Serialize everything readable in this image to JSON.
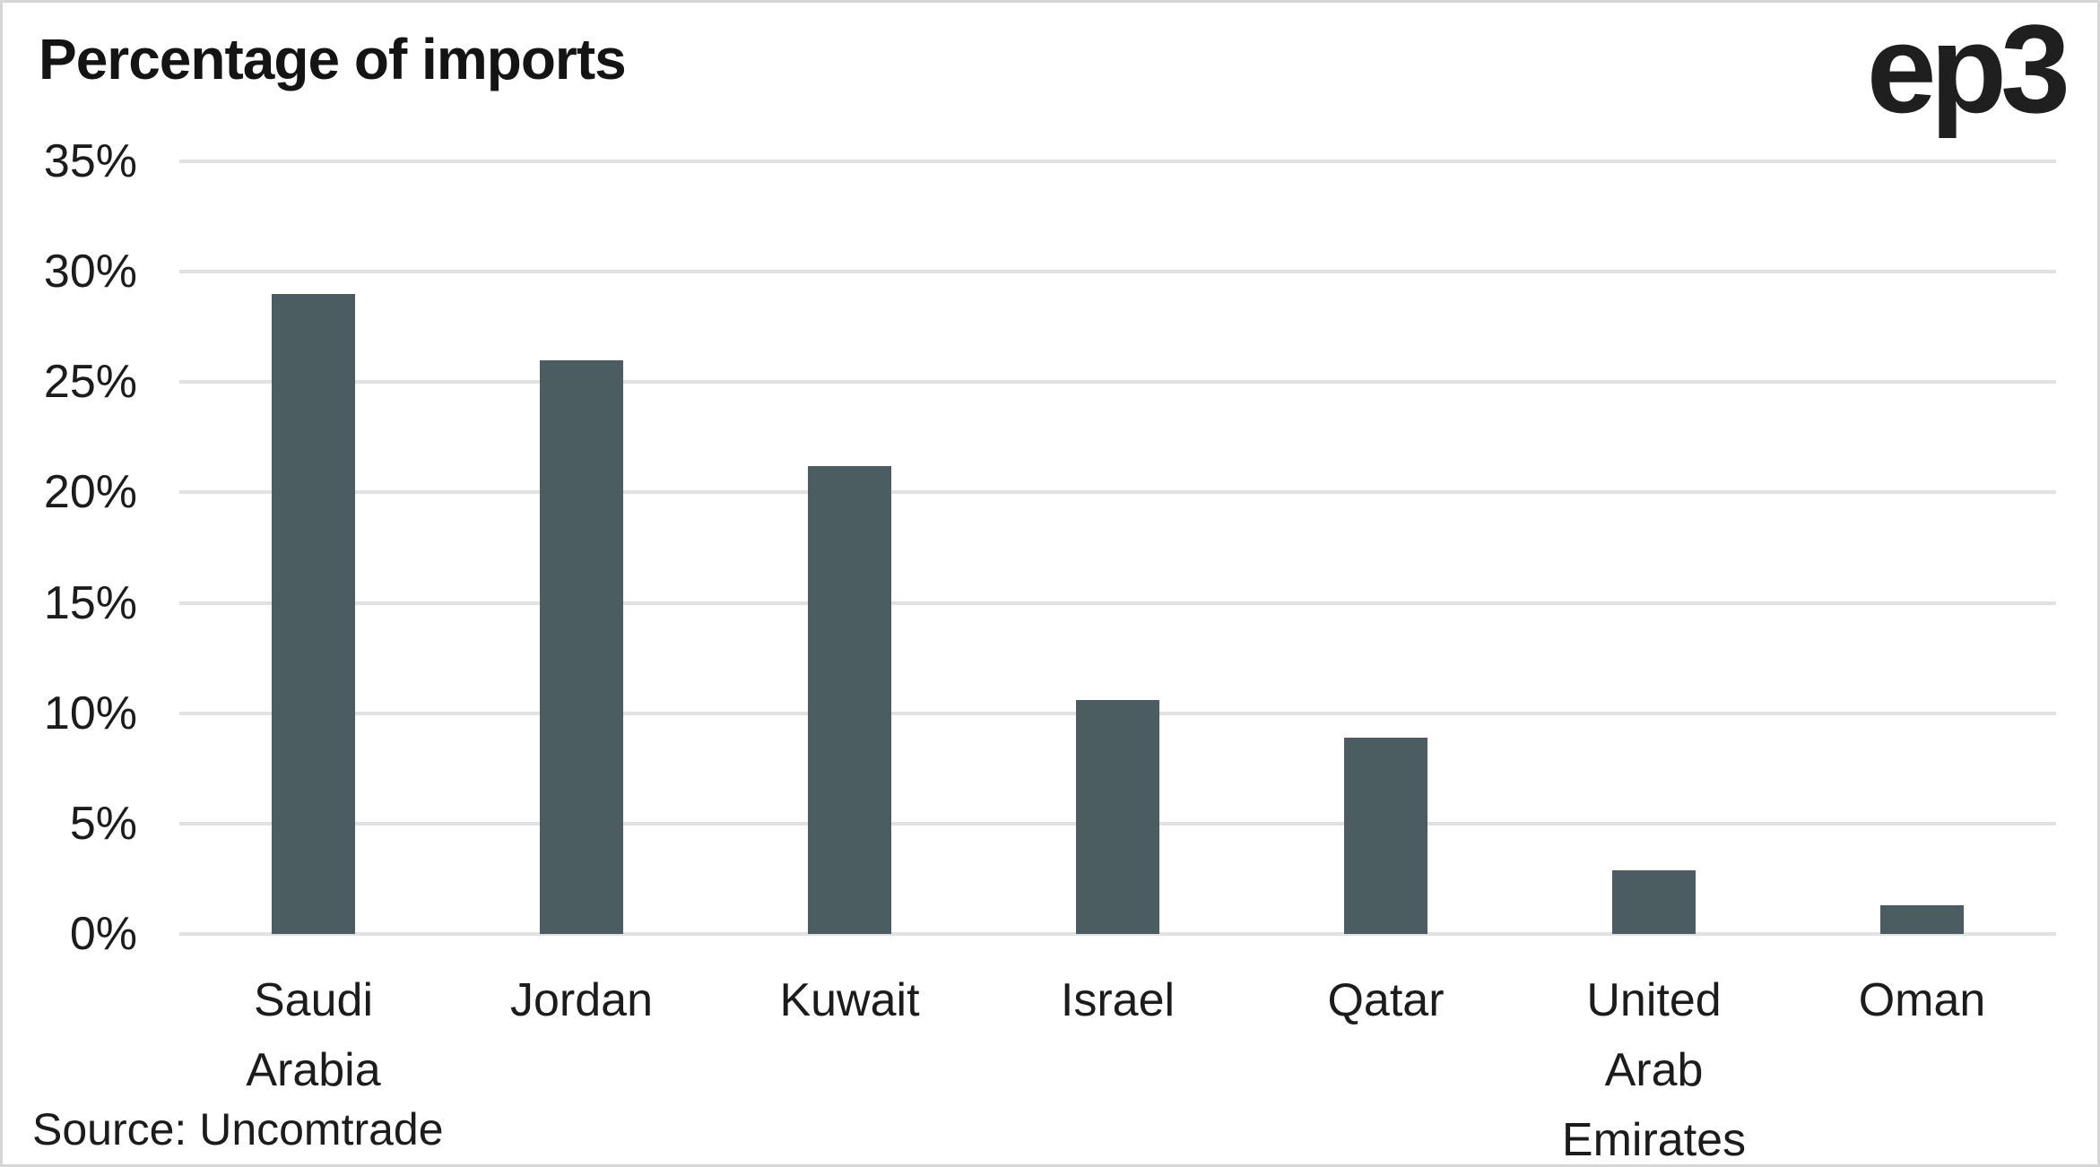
{
  "title": "Percentage of imports",
  "logo_text": "ep3",
  "source": "Source: Uncomtrade",
  "colors": {
    "bar": "#4b5d60",
    "gridline": "#e1e1e1",
    "text": "#1c1c1c",
    "title_text": "#141414",
    "border": "#d6d6d6",
    "background": "#ffffff"
  },
  "chart_data": {
    "type": "bar",
    "title": "Percentage of imports",
    "categories": [
      "Saudi Arabia",
      "Jordan",
      "Kuwait",
      "Israel",
      "Qatar",
      "United Arab Emirates",
      "Oman"
    ],
    "values": [
      29,
      26,
      21.2,
      10.6,
      8.9,
      2.9,
      1.3
    ],
    "xlabel": "",
    "ylabel": "",
    "ylim": [
      0,
      35
    ],
    "ytick_step": 5,
    "ytick_labels": [
      "0%",
      "5%",
      "10%",
      "15%",
      "20%",
      "25%",
      "30%",
      "35%"
    ],
    "grid": true,
    "legend": false,
    "source": "Source: Uncomtrade"
  }
}
